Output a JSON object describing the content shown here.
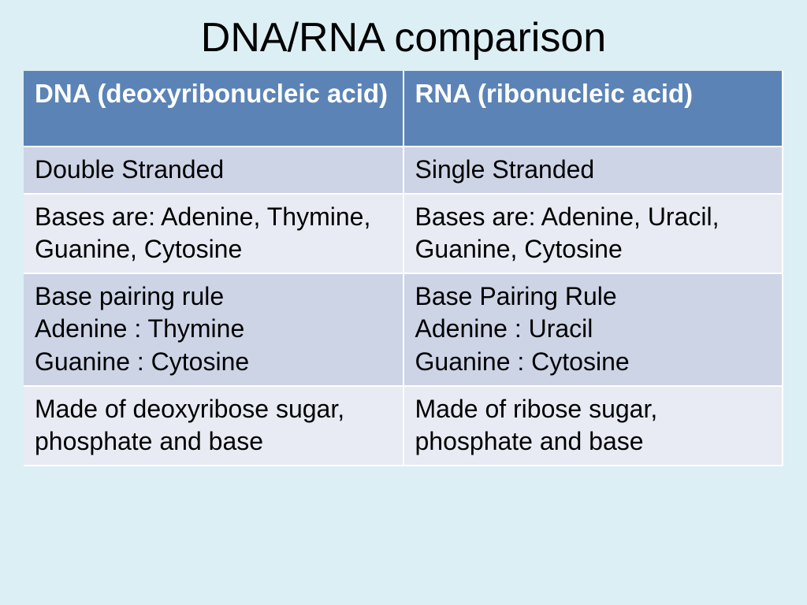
{
  "slide": {
    "title": "DNA/RNA comparison",
    "background_color": "#dceff4",
    "title_fontsize": 52,
    "title_color": "#000000"
  },
  "table": {
    "type": "table",
    "columns": [
      "DNA (deoxyribonucleic acid)",
      "RNA (ribonucleic acid)"
    ],
    "header_bg": "#5b83b6",
    "header_text_color": "#ffffff",
    "row_odd_bg": "#cdd4e6",
    "row_even_bg": "#e8ebf3",
    "cell_text_color": "#000000",
    "cell_fontsize": 32,
    "header_fontsize": 33,
    "border_color": "#ffffff",
    "rows": [
      {
        "dna": "Double Stranded",
        "rna": "Single Stranded"
      },
      {
        "dna": "Bases are: Adenine, Thymine, Guanine, Cytosine",
        "rna": "Bases are: Adenine, Uracil, Guanine, Cytosine"
      },
      {
        "dna_l1": "Base pairing rule",
        "dna_l2": "Adenine : Thymine",
        "dna_l3": "Guanine : Cytosine",
        "rna_l1": "Base Pairing Rule",
        "rna_l2": "Adenine : Uracil",
        "rna_l3": "Guanine : Cytosine"
      },
      {
        "dna": "Made of deoxyribose sugar, phosphate and base",
        "rna": "Made of ribose sugar, phosphate and base"
      }
    ]
  }
}
